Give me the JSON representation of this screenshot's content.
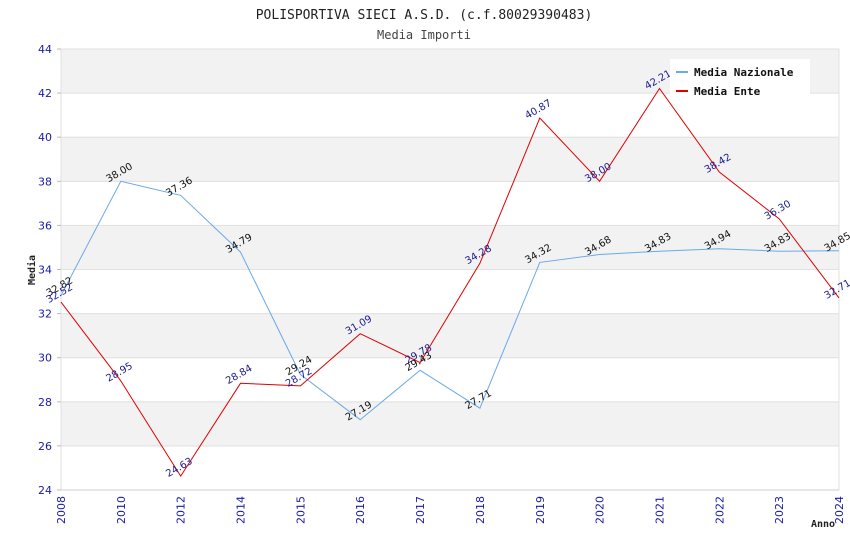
{
  "chart_data": {
    "type": "line",
    "title": "POLISPORTIVA SIECI A.S.D. (c.f.80029390483)",
    "subtitle": "Media Importi",
    "xlabel": "Anno",
    "ylabel": "Media",
    "ylim": [
      24,
      44
    ],
    "yticks": [
      "24",
      "26",
      "28",
      "30",
      "32",
      "34",
      "36",
      "38",
      "40",
      "42",
      "44"
    ],
    "categories": [
      "2008",
      "2010",
      "2012",
      "2014",
      "2015",
      "2016",
      "2017",
      "2018",
      "2019",
      "2020",
      "2021",
      "2022",
      "2023",
      "2024"
    ],
    "series": [
      {
        "name": "Media Nazionale",
        "color": "#6aa9e9",
        "label_color": "#111111",
        "values": [
          32.82,
          38.0,
          37.36,
          34.79,
          29.24,
          27.19,
          29.43,
          27.71,
          34.32,
          34.68,
          34.83,
          34.94,
          34.83,
          34.85
        ],
        "labels": [
          "32.82",
          "38.00",
          "37.36",
          "34.79",
          "29.24",
          "27.19",
          "29.43",
          "27.71",
          "34.32",
          "34.68",
          "34.83",
          "34.94",
          "34.83",
          "34.85"
        ]
      },
      {
        "name": "Media Ente",
        "color": "#e00000",
        "label_color": "#1a1a8c",
        "values": [
          32.52,
          28.95,
          24.63,
          28.84,
          28.72,
          31.09,
          29.78,
          34.28,
          40.87,
          38.0,
          42.21,
          38.42,
          36.3,
          32.71
        ],
        "labels": [
          "32.52",
          "28.95",
          "24.63",
          "28.84",
          "28.72",
          "31.09",
          "29.78",
          "34.28",
          "40.87",
          "38.00",
          "42.21",
          "38.42",
          "36.30",
          "32.71"
        ]
      }
    ],
    "grid": true,
    "legend": "top-right"
  }
}
